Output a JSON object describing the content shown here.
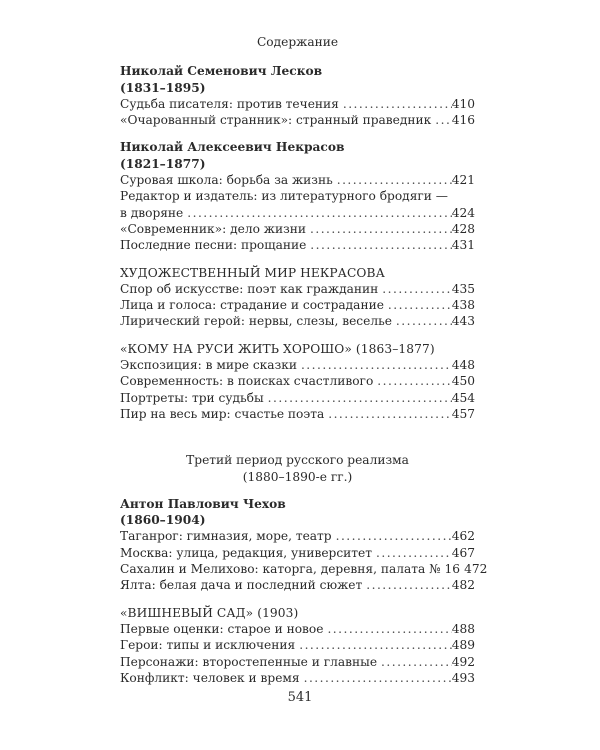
{
  "running_head": "Содержание",
  "sections": [
    {
      "kind": "author",
      "title": "Николай Семенович Лесков",
      "years": "(1831–1895)",
      "entries": [
        {
          "title": "Судьба писателя: против течения",
          "page": "410"
        },
        {
          "title": "«Очарованный странник»: странный праведник",
          "page": "416"
        }
      ]
    },
    {
      "kind": "author",
      "title": "Николай Алексеевич Некрасов",
      "years": "(1821–1877)",
      "entries": [
        {
          "title": "Суровая школа: борьба за жизнь",
          "page": "421"
        },
        {
          "title_line1": "Редактор и издатель: из литературного бродяги —",
          "title": "в дворяне",
          "page": "424"
        },
        {
          "title": "«Современник»: дело жизни",
          "page": "428"
        },
        {
          "title": "Последние песни: прощание",
          "page": "431"
        }
      ]
    },
    {
      "kind": "heading",
      "title": "ХУДОЖЕСТВЕННЫЙ МИР НЕКРАСОВА",
      "entries": [
        {
          "title": "Спор об искусстве: поэт как гражданин",
          "page": "435"
        },
        {
          "title": "Лица и голоса: страдание и сострадание",
          "page": "438"
        },
        {
          "title": "Лирический герой: нервы, слезы, веселье",
          "page": "443"
        }
      ]
    },
    {
      "kind": "heading",
      "title": "«КОМУ НА РУСИ ЖИТЬ ХОРОШО» (1863–1877)",
      "entries": [
        {
          "title": "Экспозиция: в мире сказки",
          "page": "448"
        },
        {
          "title": "Современность: в поисках счастливого",
          "page": "450"
        },
        {
          "title": "Портреты: три судьбы",
          "page": "454"
        },
        {
          "title": "Пир на весь мир: счастье поэта",
          "page": "457"
        }
      ]
    },
    {
      "kind": "part",
      "title": "Третий период русского реализма",
      "years": "(1880–1890-е гг.)",
      "entries": []
    },
    {
      "kind": "author",
      "title": "Антон Павлович Чехов",
      "years": "(1860–1904)",
      "entries": [
        {
          "title": "Таганрог: гимназия, море, театр",
          "page": "462"
        },
        {
          "title": "Москва: улица, редакция, университет",
          "page": "467"
        },
        {
          "title": "Сахалин и Мелихово: каторга, деревня, палата № 16",
          "page": "472"
        },
        {
          "title": "Ялта: белая дача и последний сюжет",
          "page": "482"
        }
      ]
    },
    {
      "kind": "heading",
      "title": "«ВИШНЕВЫЙ САД» (1903)",
      "entries": [
        {
          "title": "Первые оценки: старое и новое",
          "page": "488"
        },
        {
          "title": "Герои: типы и исключения",
          "page": "489"
        },
        {
          "title": "Персонажи: второстепенные и главные",
          "page": "492"
        },
        {
          "title": "Конфликт: человек и время",
          "page": "493"
        }
      ]
    }
  ],
  "page_number": "541"
}
